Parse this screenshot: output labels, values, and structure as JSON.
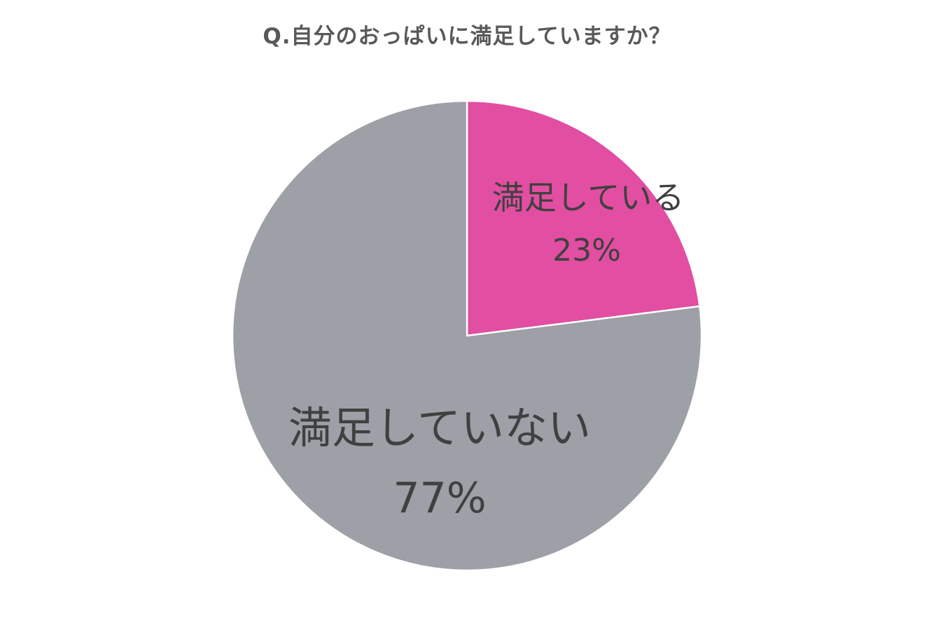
{
  "chart_data": {
    "type": "pie",
    "title": "Q.自分のおっぱいに満足していますか？",
    "slices": [
      {
        "label": "満足している",
        "value": 23,
        "value_label": "23%",
        "color": "#e24ea1"
      },
      {
        "label": "満足していない",
        "value": 77,
        "value_label": "77%",
        "color": "#9ea0a7"
      }
    ],
    "start": "12 o'clock",
    "direction": "clockwise",
    "legend": "none"
  }
}
